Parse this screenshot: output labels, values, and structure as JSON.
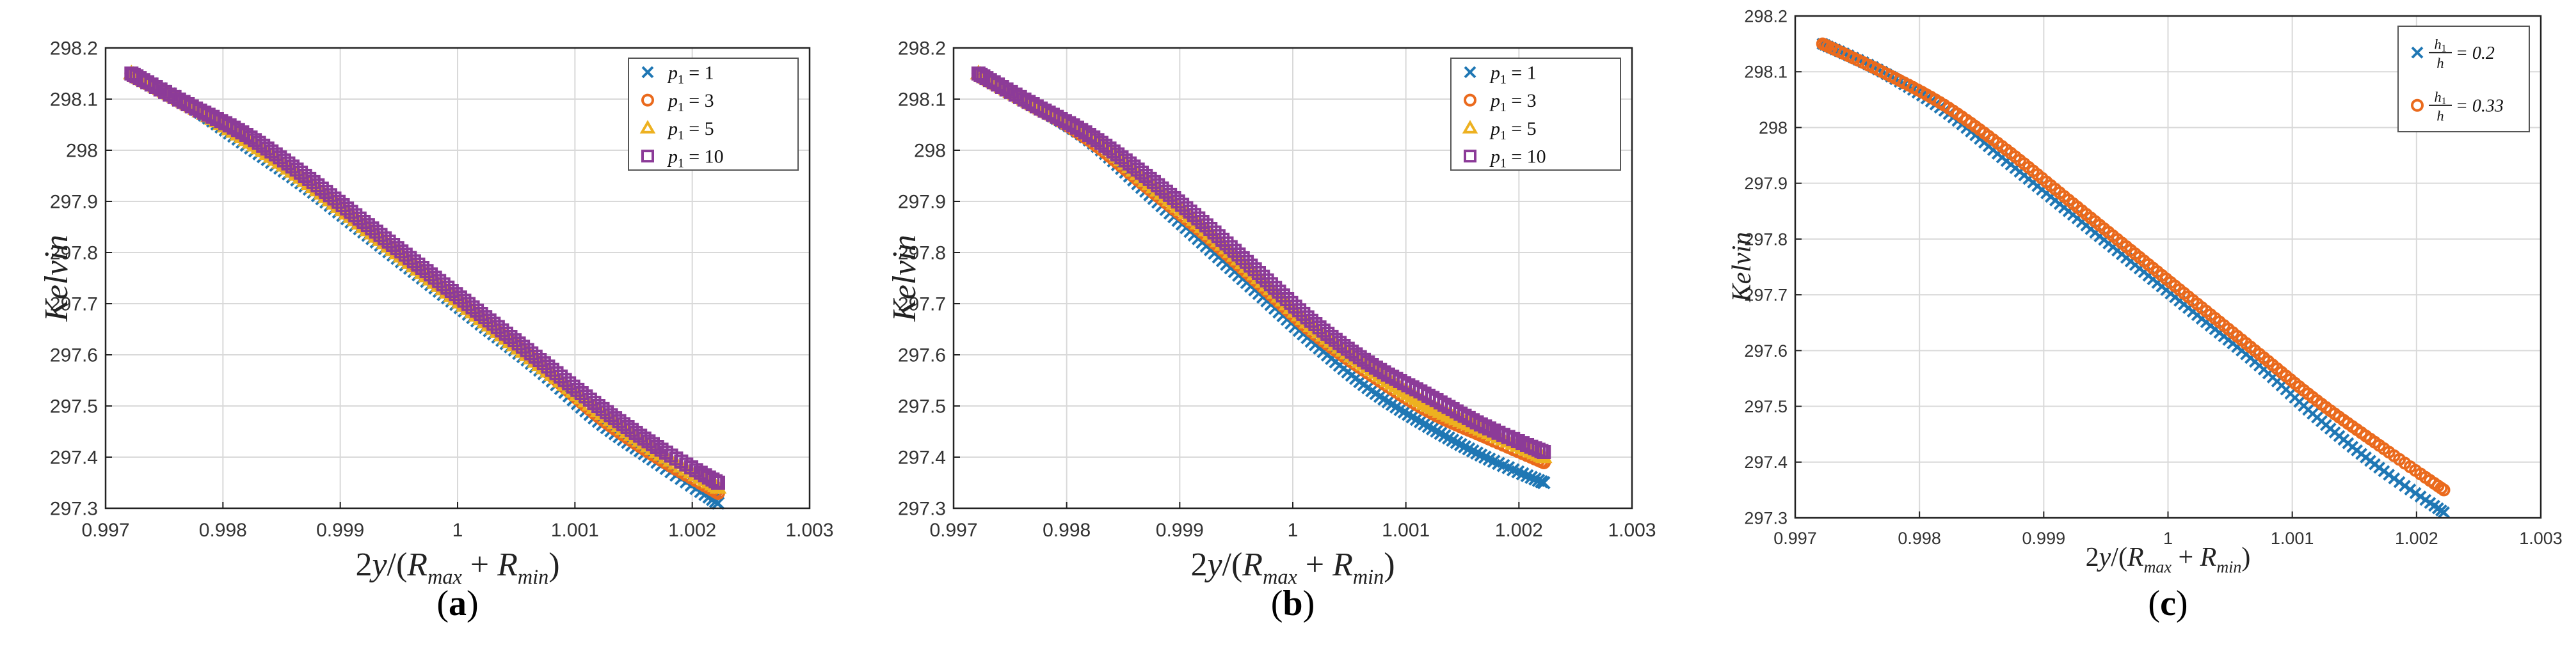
{
  "colors": {
    "blue": "#1f77b4",
    "orange": "#ea6a1d",
    "yellow": "#edb120",
    "purple": "#8c3b98",
    "grid": "#d9d9d9",
    "axis": "#222222"
  },
  "chart_data": [
    {
      "type": "scatter",
      "panel": "a",
      "caption": "(a)",
      "caption_letter": "a",
      "xlabel": "2y/(R_max + R_min)",
      "xlabel_parts": [
        "2",
        "y",
        "/(",
        "R",
        "max",
        " + ",
        "R",
        "min",
        ")"
      ],
      "ylabel": "Kelvin",
      "xlim": [
        0.997,
        1.003
      ],
      "ylim": [
        297.3,
        298.2
      ],
      "xticks": [
        0.997,
        0.998,
        0.999,
        1,
        1.001,
        1.002,
        1.003
      ],
      "xtick_labels": [
        "0.997",
        "0.998",
        "0.999",
        "1",
        "1.001",
        "1.002",
        "1.003"
      ],
      "yticks": [
        297.3,
        297.4,
        297.5,
        297.6,
        297.7,
        297.8,
        297.9,
        298,
        298.1,
        298.2
      ],
      "ytick_labels": [
        "297.3",
        "297.4",
        "297.5",
        "297.6",
        "297.7",
        "297.8",
        "297.9",
        "298",
        "298.1",
        "298.2"
      ],
      "grid": true,
      "legend_position": "top-right",
      "series": [
        {
          "name": "p1 = 1",
          "label_base": "p",
          "label_sub": "1",
          "label_value": " = 1",
          "marker": "x",
          "color_key": "blue",
          "x": [
            0.99722,
            0.9977,
            0.9982,
            0.9987,
            0.9992,
            0.9997,
            1.0002,
            1.0007,
            1.0012,
            1.0017,
            1.00222
          ],
          "y": [
            298.15,
            298.09,
            298.01,
            297.93,
            297.84,
            297.75,
            297.66,
            297.57,
            297.47,
            297.39,
            297.31
          ]
        },
        {
          "name": "p1 = 3",
          "label_base": "p",
          "label_sub": "1",
          "label_value": " = 3",
          "marker": "o",
          "color_key": "orange",
          "x": [
            0.99722,
            0.9977,
            0.9982,
            0.9987,
            0.9992,
            0.9997,
            1.0002,
            1.0007,
            1.0012,
            1.0017,
            1.00222
          ],
          "y": [
            298.15,
            298.09,
            298.02,
            297.94,
            297.85,
            297.76,
            297.67,
            297.58,
            297.48,
            297.4,
            297.33
          ]
        },
        {
          "name": "p1 = 5",
          "label_base": "p",
          "label_sub": "1",
          "label_value": " = 5",
          "marker": "triangle",
          "color_key": "yellow",
          "x": [
            0.99722,
            0.9977,
            0.9982,
            0.9987,
            0.9992,
            0.9997,
            1.0002,
            1.0007,
            1.0012,
            1.0017,
            1.00222
          ],
          "y": [
            298.15,
            298.09,
            298.02,
            297.94,
            297.85,
            297.76,
            297.67,
            297.58,
            297.49,
            297.41,
            297.34
          ]
        },
        {
          "name": "p1 = 10",
          "label_base": "p",
          "label_sub": "1",
          "label_value": " = 10",
          "marker": "square",
          "color_key": "purple",
          "x": [
            0.99722,
            0.9977,
            0.9982,
            0.9987,
            0.9992,
            0.9997,
            1.0002,
            1.0007,
            1.0012,
            1.0017,
            1.00222
          ],
          "y": [
            298.15,
            298.09,
            298.03,
            297.95,
            297.86,
            297.77,
            297.68,
            297.59,
            297.5,
            297.42,
            297.35
          ]
        }
      ]
    },
    {
      "type": "scatter",
      "panel": "b",
      "caption": "(b)",
      "caption_letter": "b",
      "xlabel": "2y/(R_max + R_min)",
      "xlabel_parts": [
        "2",
        "y",
        "/(",
        "R",
        "max",
        " + ",
        "R",
        "min",
        ")"
      ],
      "ylabel": "Kelvin",
      "xlim": [
        0.997,
        1.003
      ],
      "ylim": [
        297.3,
        298.2
      ],
      "xticks": [
        0.997,
        0.998,
        0.999,
        1,
        1.001,
        1.002,
        1.003
      ],
      "xtick_labels": [
        "0.997",
        "0.998",
        "0.999",
        "1",
        "1.001",
        "1.002",
        "1.003"
      ],
      "yticks": [
        297.3,
        297.4,
        297.5,
        297.6,
        297.7,
        297.8,
        297.9,
        298,
        298.1,
        298.2
      ],
      "ytick_labels": [
        "297.3",
        "297.4",
        "297.5",
        "297.6",
        "297.7",
        "297.8",
        "297.9",
        "298",
        "298.1",
        "298.2"
      ],
      "grid": true,
      "legend_position": "top-right",
      "series": [
        {
          "name": "p1 = 1",
          "label_base": "p",
          "label_sub": "1",
          "label_value": " = 1",
          "marker": "x",
          "color_key": "blue",
          "x": [
            0.99722,
            0.9977,
            0.9982,
            0.9987,
            0.9992,
            0.9997,
            1.0002,
            1.0007,
            1.0012,
            1.0017,
            1.00222
          ],
          "y": [
            298.15,
            298.09,
            298.02,
            297.92,
            297.82,
            297.72,
            297.62,
            297.53,
            297.46,
            297.4,
            297.35
          ]
        },
        {
          "name": "p1 = 3",
          "label_base": "p",
          "label_sub": "1",
          "label_value": " = 3",
          "marker": "o",
          "color_key": "orange",
          "x": [
            0.99722,
            0.9977,
            0.9982,
            0.9987,
            0.9992,
            0.9997,
            1.0002,
            1.0007,
            1.0012,
            1.0017,
            1.00222
          ],
          "y": [
            298.15,
            298.09,
            298.02,
            297.93,
            297.84,
            297.74,
            297.64,
            297.56,
            297.49,
            297.44,
            297.39
          ]
        },
        {
          "name": "p1 = 5",
          "label_base": "p",
          "label_sub": "1",
          "label_value": " = 5",
          "marker": "triangle",
          "color_key": "yellow",
          "x": [
            0.99722,
            0.9977,
            0.9982,
            0.9987,
            0.9992,
            0.9997,
            1.0002,
            1.0007,
            1.0012,
            1.0017,
            1.00222
          ],
          "y": [
            298.15,
            298.09,
            298.03,
            297.94,
            297.85,
            297.75,
            297.65,
            297.57,
            297.5,
            297.45,
            297.4
          ]
        },
        {
          "name": "p1 = 10",
          "label_base": "p",
          "label_sub": "1",
          "label_value": " = 10",
          "marker": "square",
          "color_key": "purple",
          "x": [
            0.99722,
            0.9977,
            0.9982,
            0.9987,
            0.9992,
            0.9997,
            1.0002,
            1.0007,
            1.0012,
            1.0017,
            1.00222
          ],
          "y": [
            298.15,
            298.09,
            298.03,
            297.95,
            297.86,
            297.76,
            297.66,
            297.58,
            297.52,
            297.46,
            297.41
          ]
        }
      ]
    },
    {
      "type": "scatter",
      "panel": "c",
      "caption": "(c)",
      "caption_letter": "c",
      "xlabel": "2y/(R_max + R_min)",
      "xlabel_parts": [
        "2",
        "y",
        "/(",
        "R",
        "max",
        " + ",
        "R",
        "min",
        ")"
      ],
      "ylabel": "Kelvin",
      "xlim": [
        0.997,
        1.003
      ],
      "ylim": [
        297.3,
        298.2
      ],
      "xticks": [
        0.997,
        0.998,
        0.999,
        1,
        1.001,
        1.002,
        1.003
      ],
      "xtick_labels": [
        "0.997",
        "0.998",
        "0.999",
        "1",
        "1.001",
        "1.002",
        "1.003"
      ],
      "yticks": [
        297.3,
        297.4,
        297.5,
        297.6,
        297.7,
        297.8,
        297.9,
        298,
        298.1,
        298.2
      ],
      "ytick_labels": [
        "297.3",
        "297.4",
        "297.5",
        "297.6",
        "297.7",
        "297.8",
        "297.9",
        "298",
        "298.1",
        "298.2"
      ],
      "grid": true,
      "legend_position": "top-right",
      "series": [
        {
          "name": "h1/h = 0.2",
          "label_base": "h",
          "label_sub": "1",
          "label_den": "h",
          "label_value": " = 0.2",
          "marker": "x",
          "color_key": "blue",
          "x": [
            0.99722,
            0.9977,
            0.9982,
            0.9987,
            0.9992,
            0.9997,
            1.0002,
            1.0007,
            1.0012,
            1.0017,
            1.00222
          ],
          "y": [
            298.15,
            298.1,
            298.03,
            297.94,
            297.85,
            297.76,
            297.67,
            297.58,
            297.48,
            297.39,
            297.31
          ]
        },
        {
          "name": "h1/h = 0.33",
          "label_base": "h",
          "label_sub": "1",
          "label_den": "h",
          "label_value": " = 0.33",
          "marker": "o",
          "color_key": "orange",
          "x": [
            0.99722,
            0.9977,
            0.9982,
            0.9987,
            0.9992,
            0.9997,
            1.0002,
            1.0007,
            1.0012,
            1.0017,
            1.00222
          ],
          "y": [
            298.15,
            298.1,
            298.04,
            297.96,
            297.87,
            297.78,
            297.69,
            297.6,
            297.51,
            297.43,
            297.35
          ]
        }
      ]
    }
  ]
}
